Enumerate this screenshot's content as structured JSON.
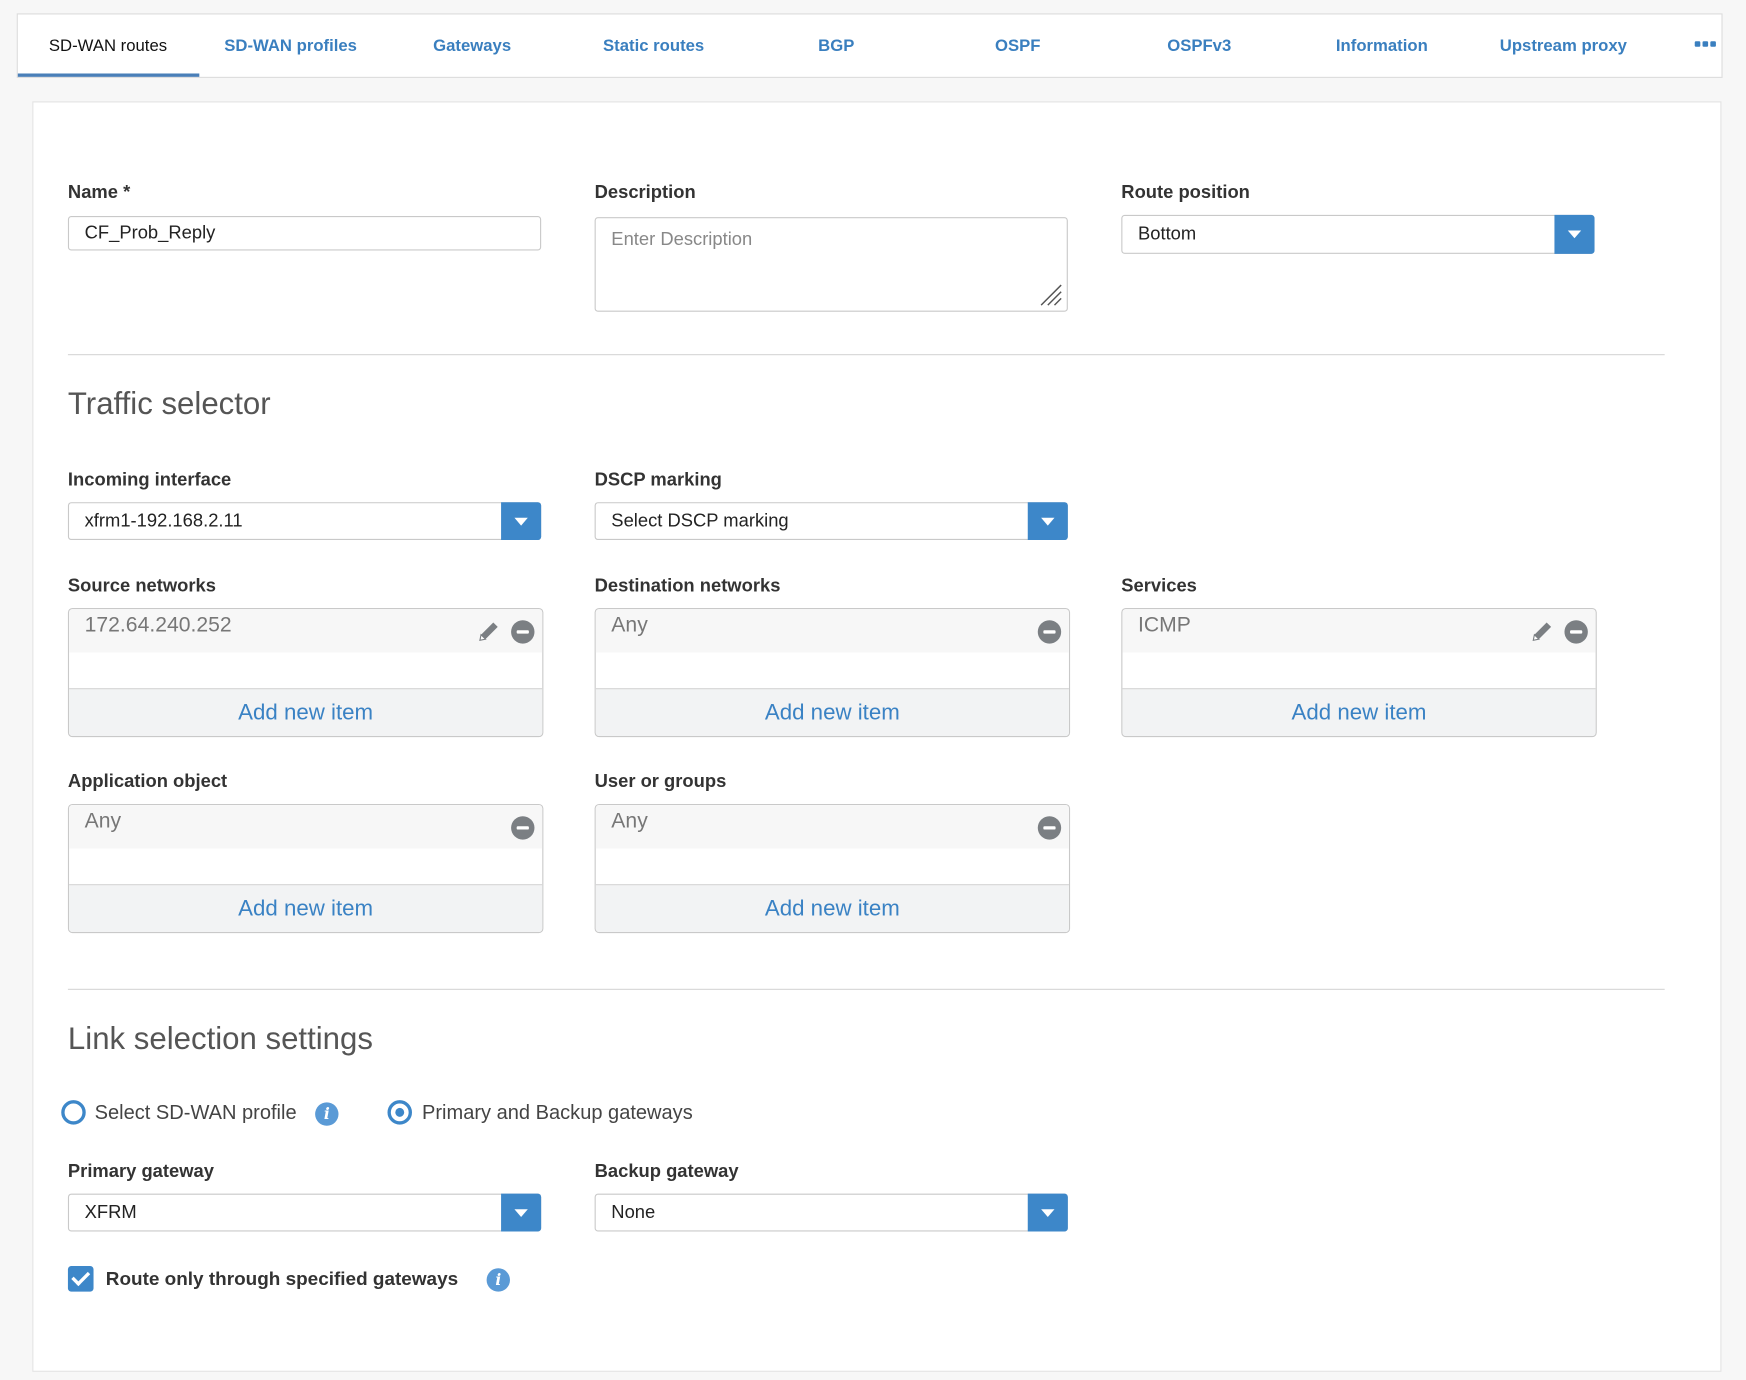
{
  "tabs": [
    {
      "label": "SD-WAN routes",
      "active": true
    },
    {
      "label": "SD-WAN profiles"
    },
    {
      "label": "Gateways"
    },
    {
      "label": "Static routes"
    },
    {
      "label": "BGP"
    },
    {
      "label": "OSPF"
    },
    {
      "label": "OSPFv3"
    },
    {
      "label": "Information"
    },
    {
      "label": "Upstream proxy"
    }
  ],
  "more_icon": "ellipsis-icon",
  "accent_color": "#3d87c9",
  "form": {
    "name": {
      "label": "Name *",
      "value": "CF_Prob_Reply"
    },
    "description": {
      "label": "Description",
      "placeholder": "Enter Description"
    },
    "route_position": {
      "label": "Route position",
      "value": "Bottom"
    }
  },
  "traffic_selector": {
    "title": "Traffic selector",
    "incoming_interface": {
      "label": "Incoming interface",
      "value": "xfrm1-192.168.2.11"
    },
    "dscp_marking": {
      "label": "DSCP marking",
      "value": "Select DSCP marking"
    },
    "source_networks": {
      "label": "Source networks",
      "item": "172.64.240.252",
      "add": "Add new item"
    },
    "destination_networks": {
      "label": "Destination networks",
      "item": "Any",
      "add": "Add new item"
    },
    "services": {
      "label": "Services",
      "item": "ICMP",
      "add": "Add new item"
    },
    "application_object": {
      "label": "Application object",
      "item": "Any",
      "add": "Add new item"
    },
    "user_or_groups": {
      "label": "User or groups",
      "item": "Any",
      "add": "Add new item"
    }
  },
  "link_selection": {
    "title": "Link selection settings",
    "radio_sdwan": {
      "label": "Select SD-WAN profile",
      "checked": false
    },
    "radio_gateways": {
      "label": "Primary and Backup gateways",
      "checked": true
    },
    "primary_gateway": {
      "label": "Primary gateway",
      "value": "XFRM"
    },
    "backup_gateway": {
      "label": "Backup gateway",
      "value": "None"
    },
    "route_only": {
      "label": "Route only through specified gateways",
      "checked": true
    },
    "info_glyph": "i"
  }
}
